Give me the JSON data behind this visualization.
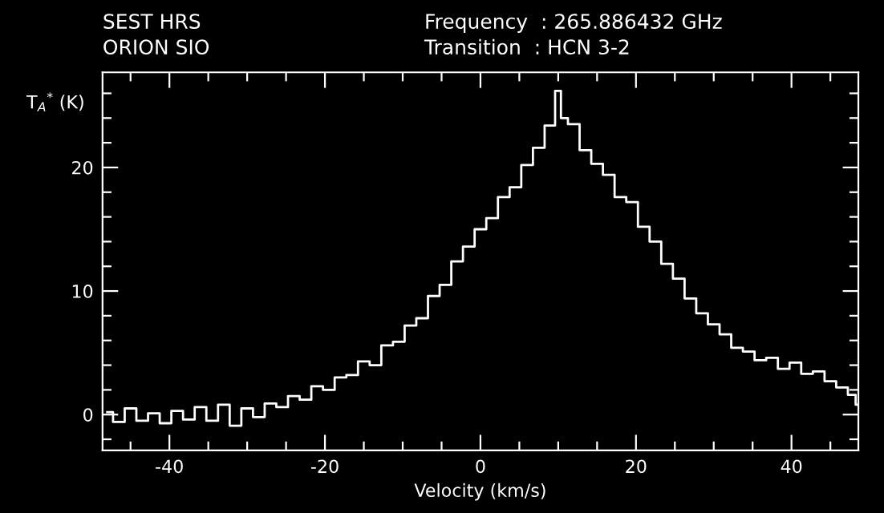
{
  "chart_data": {
    "type": "step",
    "xlabel": "Velocity (km/s)",
    "ylabel": "T$_{A}$$^{*}$ (K)",
    "annotations": [
      "SEST HRS",
      "ORION SIO",
      "Frequency  : 265.886432 GHz",
      "Transition  : HCN 3-2"
    ],
    "series": [
      {
        "color": "#ffffff",
        "x": [
          -48,
          -46.5,
          -45,
          -43.5,
          -42,
          -40.5,
          -39,
          -37.5,
          -36,
          -34.5,
          -33,
          -31.5,
          -30,
          -28.5,
          -27,
          -25.5,
          -24,
          -22.5,
          -21,
          -19.5,
          -18,
          -16.5,
          -15,
          -13.5,
          -12,
          -10.5,
          -9,
          -7.5,
          -6,
          -4.5,
          -3,
          -1.5,
          0,
          1.5,
          3,
          4.5,
          6,
          7.5,
          9,
          10.2,
          10.5,
          12,
          13.5,
          15,
          16.5,
          18,
          19.5,
          21,
          22.5,
          24,
          25.5,
          27,
          28.5,
          30,
          31.5,
          33,
          34.5,
          36,
          37.5,
          39,
          40.5,
          42,
          43.5,
          45,
          46.5,
          48,
          48.5
        ],
        "values": [
          0.2,
          -0.6,
          0.5,
          -0.5,
          0.1,
          -0.7,
          0.3,
          -0.4,
          0.6,
          -0.5,
          0.8,
          -0.9,
          0.5,
          -0.2,
          0.9,
          0.6,
          1.5,
          1.2,
          2.3,
          2.0,
          3.0,
          3.2,
          4.3,
          4.0,
          5.6,
          5.9,
          7.2,
          7.8,
          9.6,
          10.5,
          12.4,
          13.6,
          15.0,
          15.9,
          17.6,
          18.4,
          20.2,
          21.6,
          23.4,
          26.2,
          24.0,
          23.5,
          21.4,
          20.3,
          19.4,
          17.6,
          17.2,
          15.2,
          14.0,
          12.2,
          11.0,
          9.4,
          8.2,
          7.3,
          6.5,
          5.4,
          5.1,
          4.4,
          4.6,
          3.7,
          4.2,
          3.3,
          3.5,
          2.7,
          2.2,
          1.6,
          0.8
        ]
      }
    ],
    "xlim": [
      -48.6,
      48.6
    ],
    "ylim": [
      -2.9,
      27.7
    ],
    "xticks": [
      {
        "value": -45,
        "label": null
      },
      -40,
      {
        "value": -35,
        "label": null
      },
      {
        "value": -30,
        "label": null
      },
      {
        "value": -25,
        "label": null
      },
      -20,
      {
        "value": -15,
        "label": null
      },
      {
        "value": -10,
        "label": null
      },
      {
        "value": -5,
        "label": null
      },
      0,
      {
        "value": 5,
        "label": null
      },
      {
        "value": 10,
        "label": null
      },
      {
        "value": 15,
        "label": null
      },
      20,
      {
        "value": 25,
        "label": null
      },
      {
        "value": 30,
        "label": null
      },
      {
        "value": 35,
        "label": null
      },
      40,
      {
        "value": 45,
        "label": null
      }
    ],
    "yticks": [
      {
        "value": -2,
        "label": null
      },
      0,
      {
        "value": 2,
        "label": null
      },
      {
        "value": 4,
        "label": null
      },
      {
        "value": 6,
        "label": null
      },
      {
        "value": 8,
        "label": null
      },
      10,
      {
        "value": 12,
        "label": null
      },
      {
        "value": 14,
        "label": null
      },
      {
        "value": 16,
        "label": null
      },
      {
        "value": 18,
        "label": null
      },
      20,
      {
        "value": 22,
        "label": null
      },
      {
        "value": 24,
        "label": null
      },
      {
        "value": 26,
        "label": null
      }
    ]
  }
}
